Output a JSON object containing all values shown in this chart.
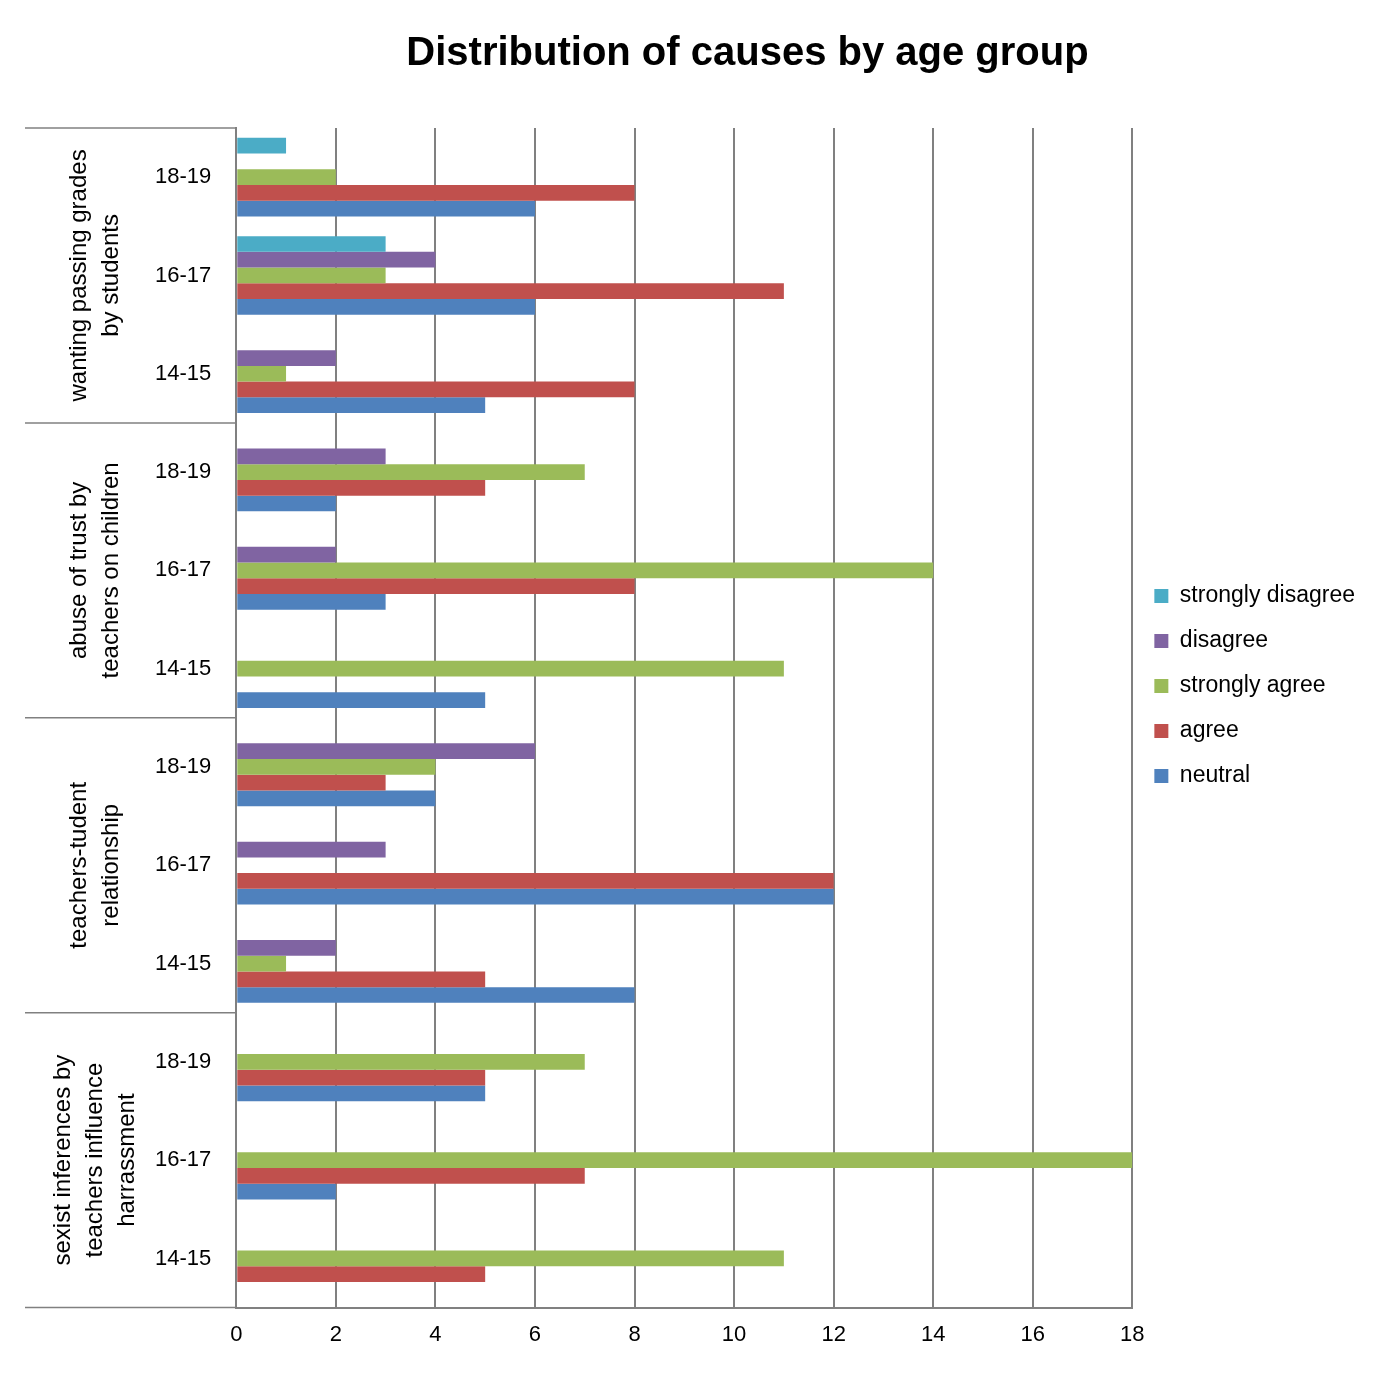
{
  "chart_data": {
    "type": "bar",
    "orientation": "horizontal",
    "title": "Distribution of causes by age group",
    "categories": [
      "18-19",
      "16-17",
      "14-15",
      "18-19",
      "16-17",
      "14-15",
      "18-19",
      "16-17",
      "14-15",
      "18-19",
      "16-17",
      "14-15"
    ],
    "annotations": [
      "wanting passing grades by students",
      "abuse of trust by teachers on children",
      "teachers-tudent relationship",
      "sexist inferences by teachers influence harrassment"
    ],
    "series": [
      {
        "name": "strongly disagree",
        "color": "#4bacc6",
        "values": [
          1,
          3,
          0,
          0,
          0,
          0,
          0,
          0,
          0,
          0,
          0,
          0
        ]
      },
      {
        "name": "disagree",
        "color": "#8064a2",
        "values": [
          0,
          4,
          2,
          3,
          2,
          0,
          6,
          3,
          2,
          0,
          0,
          0
        ]
      },
      {
        "name": "strongly agree",
        "color": "#9bbb59",
        "values": [
          2,
          3,
          1,
          7,
          14,
          11,
          4,
          0,
          1,
          7,
          18,
          11
        ]
      },
      {
        "name": "agree",
        "color": "#c0504d",
        "values": [
          8,
          11,
          8,
          5,
          8,
          0,
          3,
          12,
          5,
          5,
          7,
          5
        ]
      },
      {
        "name": "neutral",
        "color": "#4f81bd",
        "values": [
          6,
          6,
          5,
          2,
          3,
          5,
          4,
          12,
          8,
          5,
          2,
          0
        ]
      }
    ],
    "xlim": [
      0,
      18
    ],
    "xticks": [
      0,
      2,
      4,
      6,
      8,
      10,
      12,
      14,
      16,
      18
    ],
    "grid": "x",
    "legend": "right"
  }
}
